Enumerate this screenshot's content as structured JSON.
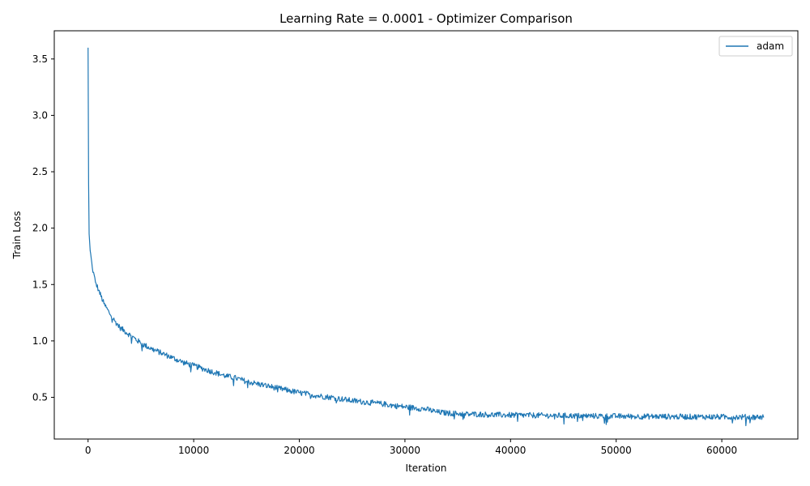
{
  "chart_data": {
    "type": "line",
    "title": "Learning Rate = 0.0001 - Optimizer Comparison",
    "xlabel": "Iteration",
    "ylabel": "Train Loss",
    "xlim": [
      -3200,
      67200
    ],
    "ylim": [
      0.13,
      3.75
    ],
    "xticks": [
      0,
      10000,
      20000,
      30000,
      40000,
      50000,
      60000
    ],
    "xtick_labels": [
      "0",
      "10000",
      "20000",
      "30000",
      "40000",
      "50000",
      "60000"
    ],
    "yticks": [
      0.5,
      1.0,
      1.5,
      2.0,
      2.5,
      3.0,
      3.5
    ],
    "ytick_labels": [
      "0.5",
      "1.0",
      "1.5",
      "2.0",
      "2.5",
      "3.0",
      "3.5"
    ],
    "grid": false,
    "legend": {
      "position": "top-right"
    },
    "series": [
      {
        "name": "adam",
        "color": "#1f77b4",
        "noise_amplitude": 0.025,
        "x": [
          0,
          50,
          100,
          200,
          400,
          700,
          1000,
          1500,
          2000,
          2500,
          3000,
          4000,
          5000,
          6000,
          7000,
          8000,
          9000,
          10000,
          11000,
          12000,
          13000,
          14000,
          15000,
          16000,
          17000,
          18000,
          19000,
          20000,
          21000,
          22000,
          23000,
          24000,
          25000,
          26000,
          27000,
          28000,
          29000,
          30000,
          31000,
          32000,
          33000,
          34000,
          35000,
          36000,
          37000,
          38000,
          40000,
          42000,
          44000,
          46000,
          48000,
          50000,
          52000,
          54000,
          56000,
          58000,
          60000,
          62000,
          64000
        ],
        "y": [
          3.6,
          2.4,
          1.95,
          1.8,
          1.65,
          1.52,
          1.45,
          1.33,
          1.25,
          1.18,
          1.12,
          1.05,
          0.98,
          0.93,
          0.89,
          0.85,
          0.81,
          0.78,
          0.75,
          0.72,
          0.69,
          0.67,
          0.64,
          0.62,
          0.6,
          0.58,
          0.56,
          0.54,
          0.525,
          0.51,
          0.5,
          0.485,
          0.47,
          0.46,
          0.45,
          0.44,
          0.425,
          0.415,
          0.405,
          0.395,
          0.37,
          0.36,
          0.355,
          0.35,
          0.35,
          0.345,
          0.342,
          0.34,
          0.338,
          0.336,
          0.334,
          0.332,
          0.33,
          0.33,
          0.328,
          0.327,
          0.326,
          0.325,
          0.325
        ]
      }
    ]
  }
}
